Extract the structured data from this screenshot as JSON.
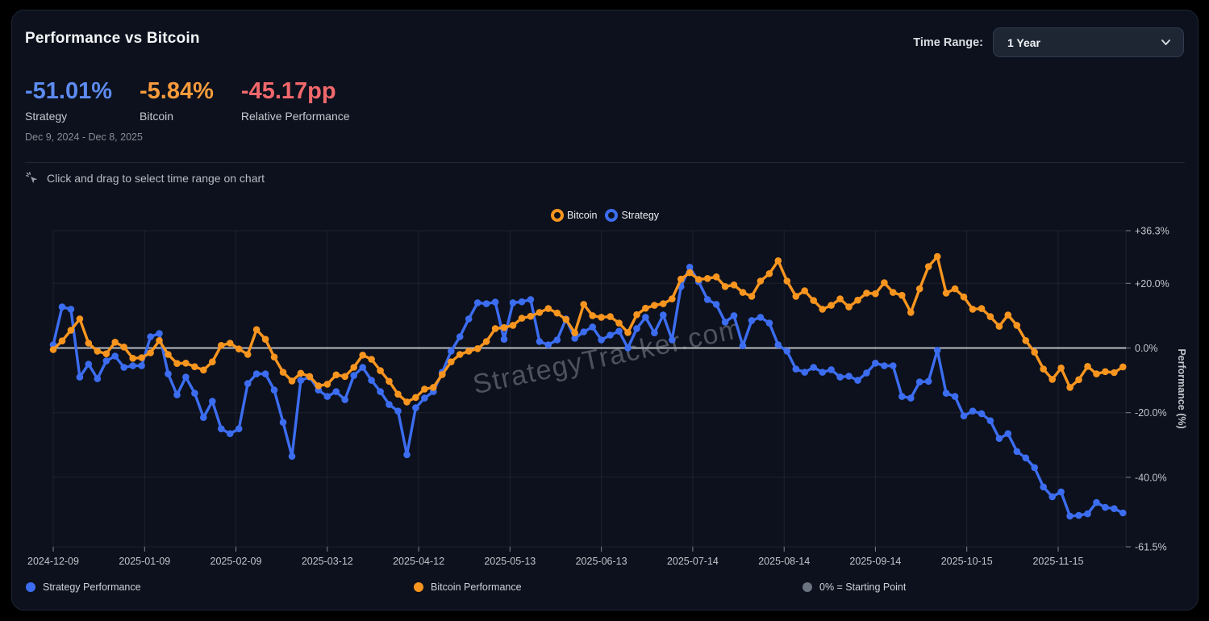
{
  "header": {
    "title": "Performance vs Bitcoin",
    "time_range_label": "Time Range:",
    "time_range_value": "1 Year"
  },
  "stats": [
    {
      "value": "-51.01%",
      "label": "Strategy",
      "color": "#5d8bf0"
    },
    {
      "value": "-5.84%",
      "label": "Bitcoin",
      "color": "#f89b3c"
    },
    {
      "value": "-45.17pp",
      "label": "Relative Performance",
      "color": "#f2686c"
    }
  ],
  "date_range": "Dec 9, 2024 - Dec 8, 2025",
  "hint": {
    "icon": "cursor-click-icon",
    "text": "Click and drag to select time range on chart"
  },
  "legend_top": [
    {
      "label": "Bitcoin",
      "color": "#f8951f"
    },
    {
      "label": "Strategy",
      "color": "#3c6df0"
    }
  ],
  "legend_bottom": [
    {
      "label": "Strategy Performance",
      "color": "#3c6df0"
    },
    {
      "label": "Bitcoin Performance",
      "color": "#f8951f"
    },
    {
      "label": "0% = Starting Point",
      "color": "#6b7280"
    }
  ],
  "watermark": "StrategyTracker.com",
  "chart_data": {
    "type": "line",
    "title": "Performance vs Bitcoin",
    "xlabel": "",
    "ylabel": "Performance (%)",
    "grid": true,
    "legend_position": "top-center",
    "sample_interval_days": 3,
    "x_axis": {
      "tick_days": [
        0,
        31,
        62,
        93,
        124,
        155,
        186,
        217,
        248,
        279,
        310,
        341
      ],
      "tick_labels": [
        "2024-12-09",
        "2025-01-09",
        "2025-02-09",
        "2025-03-12",
        "2025-04-12",
        "2025-05-13",
        "2025-06-13",
        "2025-07-14",
        "2025-08-14",
        "2025-09-14",
        "2025-10-15",
        "2025-11-15"
      ],
      "total_days": 364
    },
    "y_axis": {
      "title": "Performance (%)",
      "ticks": [
        36.3,
        20,
        0,
        -20,
        -40,
        -61.5
      ],
      "tick_labels": [
        "+36.3%",
        "+20.0%",
        "0.0%",
        "-20.0%",
        "-40.0%",
        "-61.5%"
      ],
      "range": [
        -61.5,
        36.3
      ],
      "zero_line": 0
    },
    "series": [
      {
        "name": "Bitcoin",
        "color": "#f8951f",
        "final_value_pct": -5.84,
        "values": [
          -0.5,
          2.2,
          5.5,
          9,
          1.5,
          -1,
          -1.8,
          1.8,
          0.3,
          -3.2,
          -3,
          -1.5,
          2.3,
          -2,
          -4.8,
          -4.7,
          -5.8,
          -6.8,
          -4.3,
          0.8,
          1.5,
          -0.3,
          -2,
          5.7,
          2.7,
          -2.8,
          -7.5,
          -10.2,
          -7.8,
          -8.8,
          -11.7,
          -11.2,
          -8.3,
          -8.8,
          -6,
          -2.2,
          -3.5,
          -7,
          -10.3,
          -14.3,
          -16.7,
          -15.3,
          -12.7,
          -12.2,
          -8.2,
          -4.3,
          -2,
          -1,
          -0.2,
          2,
          6,
          6.3,
          7,
          9.2,
          9.8,
          11,
          12.2,
          10.8,
          8.8,
          4.7,
          13.5,
          10,
          9.5,
          9.7,
          7.7,
          4.8,
          10.3,
          12.3,
          13.2,
          13.7,
          15.2,
          21.3,
          23.3,
          21.2,
          21.5,
          22,
          19,
          19.5,
          17.2,
          16,
          20.7,
          23,
          27,
          20.7,
          16,
          17.7,
          14.7,
          12,
          13.2,
          15.2,
          12.7,
          14.8,
          17,
          16.8,
          20.2,
          17.2,
          16.3,
          11,
          18.3,
          25.2,
          28.3,
          17,
          18.3,
          15.8,
          12,
          12.2,
          9.7,
          6.7,
          10.2,
          7,
          2.3,
          -1.3,
          -6.5,
          -9.7,
          -6.2,
          -12.2,
          -9.8,
          -5.7,
          -8,
          -7.3,
          -7.6,
          -5.84
        ]
      },
      {
        "name": "Strategy",
        "color": "#3c6df0",
        "final_value_pct": -51.01,
        "values": [
          1,
          12.7,
          12,
          -9,
          -5,
          -9.5,
          -4,
          -2.5,
          -6,
          -5.5,
          -5.5,
          3.5,
          4.5,
          -8,
          -14.5,
          -9,
          -14,
          -21.5,
          -16.5,
          -25,
          -26.5,
          -25,
          -11,
          -8,
          -8,
          -13,
          -23,
          -33.5,
          -10,
          -9,
          -13,
          -15,
          -13.5,
          -16,
          -8.5,
          -6,
          -10,
          -13.5,
          -17.5,
          -19.5,
          -33,
          -18.5,
          -15.5,
          -13.5,
          -7.5,
          -1,
          3.5,
          9,
          14,
          13.7,
          14.2,
          2.7,
          14,
          14.3,
          15,
          2,
          1,
          2.5,
          9,
          3,
          5,
          6.5,
          2.5,
          4,
          5.2,
          0,
          6,
          9.5,
          4.7,
          10.2,
          2.5,
          19,
          25,
          20.5,
          15,
          13.5,
          8,
          10,
          0.7,
          8.5,
          9.5,
          7.7,
          1,
          -1,
          -6.5,
          -7.5,
          -6,
          -7.5,
          -6.7,
          -9,
          -8.7,
          -10,
          -7.7,
          -4.7,
          -5.5,
          -5.5,
          -15,
          -15.5,
          -10.5,
          -10.3,
          -0.7,
          -14,
          -15,
          -21,
          -19.5,
          -20.3,
          -22.5,
          -28,
          -26.5,
          -32,
          -34,
          -37,
          -43,
          -46,
          -44.5,
          -52,
          -51.8,
          -51.3,
          -47.8,
          -49.3,
          -49.7,
          -51.01
        ]
      }
    ]
  }
}
